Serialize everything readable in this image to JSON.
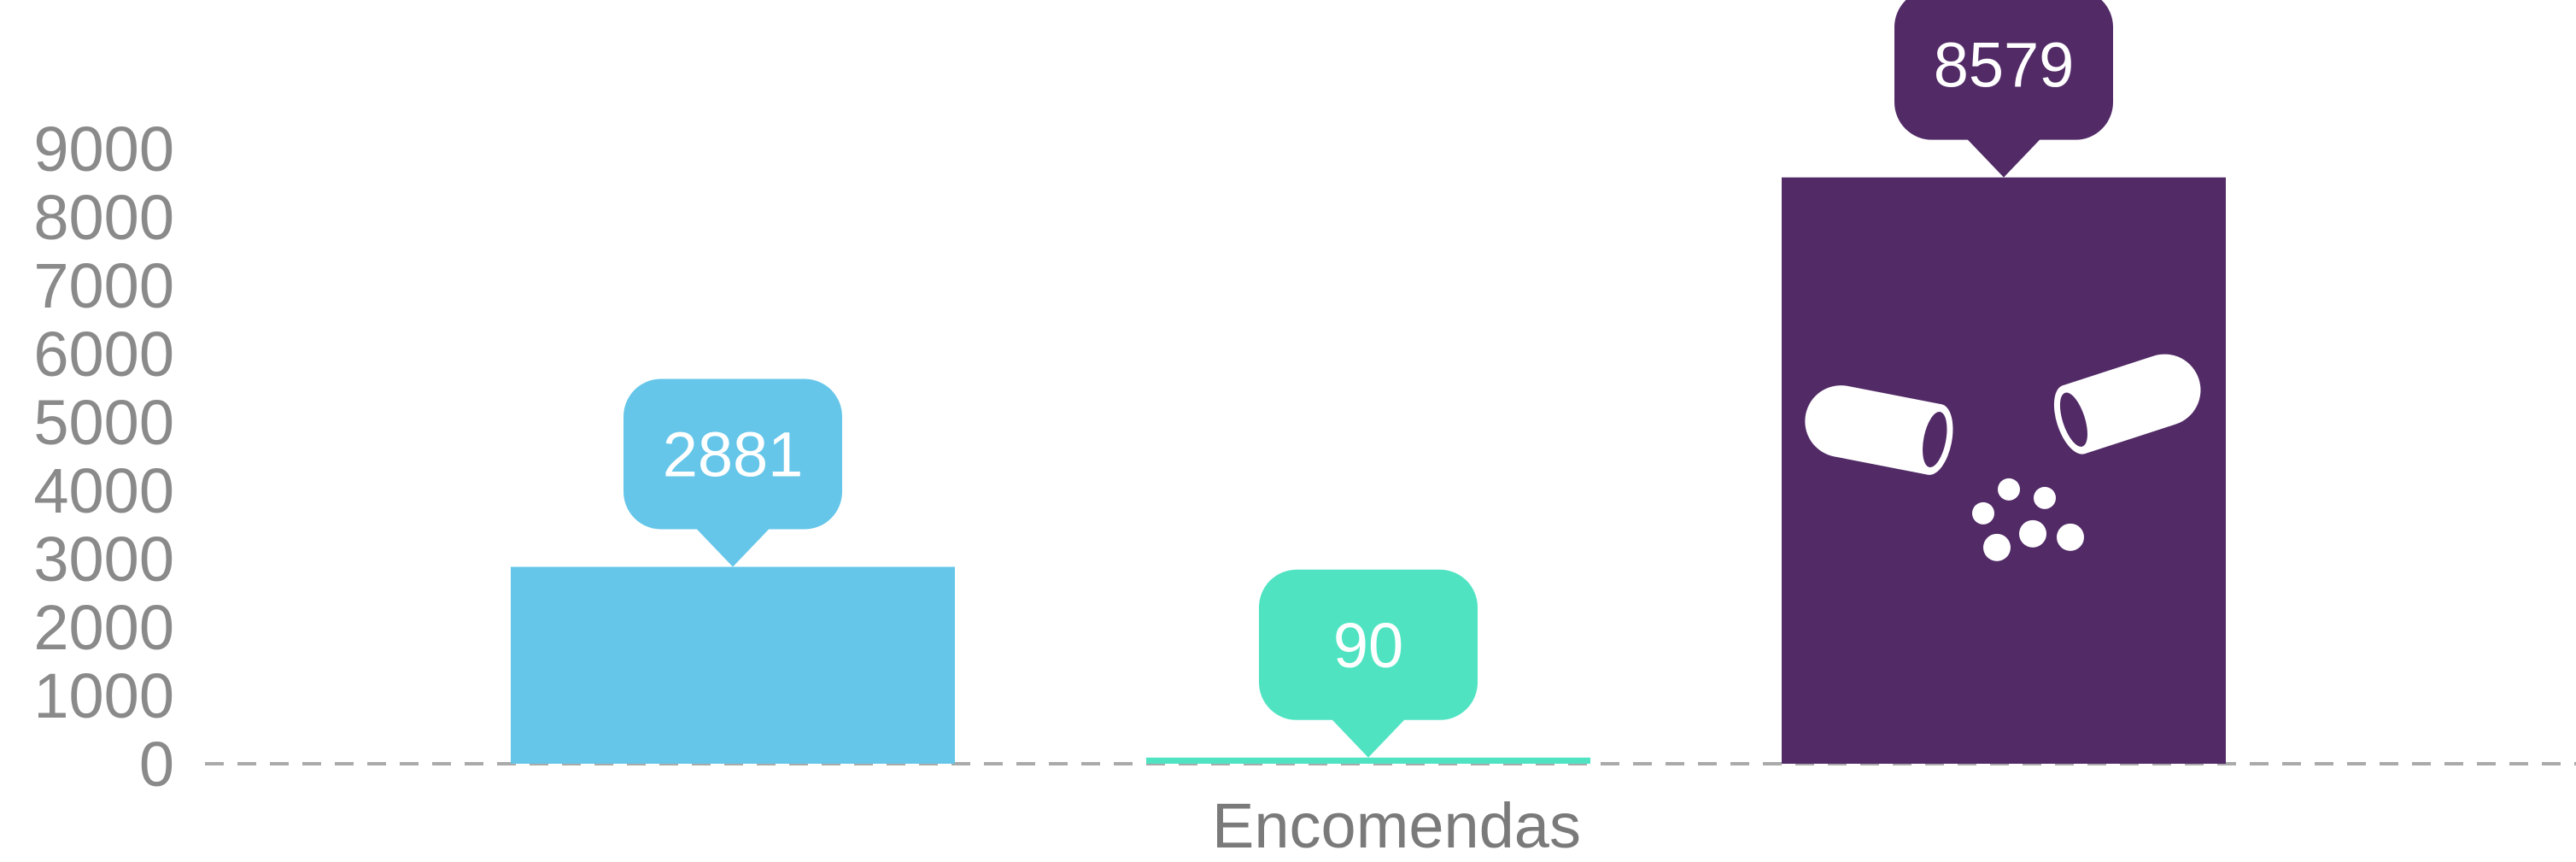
{
  "chart_data": {
    "type": "bar",
    "categories": [
      "Encomendas"
    ],
    "series": [
      {
        "values": [
          2881
        ],
        "color": "#65c6e9"
      },
      {
        "values": [
          90
        ],
        "color": "#4fe3c2"
      },
      {
        "values": [
          8579
        ],
        "color": "#512a66",
        "icon": "pill-capsule-icon"
      }
    ],
    "yticks": [
      9000,
      8000,
      7000,
      6000,
      5000,
      4000,
      3000,
      2000,
      1000,
      0
    ],
    "ylim": [
      0,
      9000
    ],
    "xlabel": "Encomendas",
    "ylabel": "",
    "title": "",
    "legend": "none",
    "grid": false,
    "baseline_style": "dashed"
  }
}
